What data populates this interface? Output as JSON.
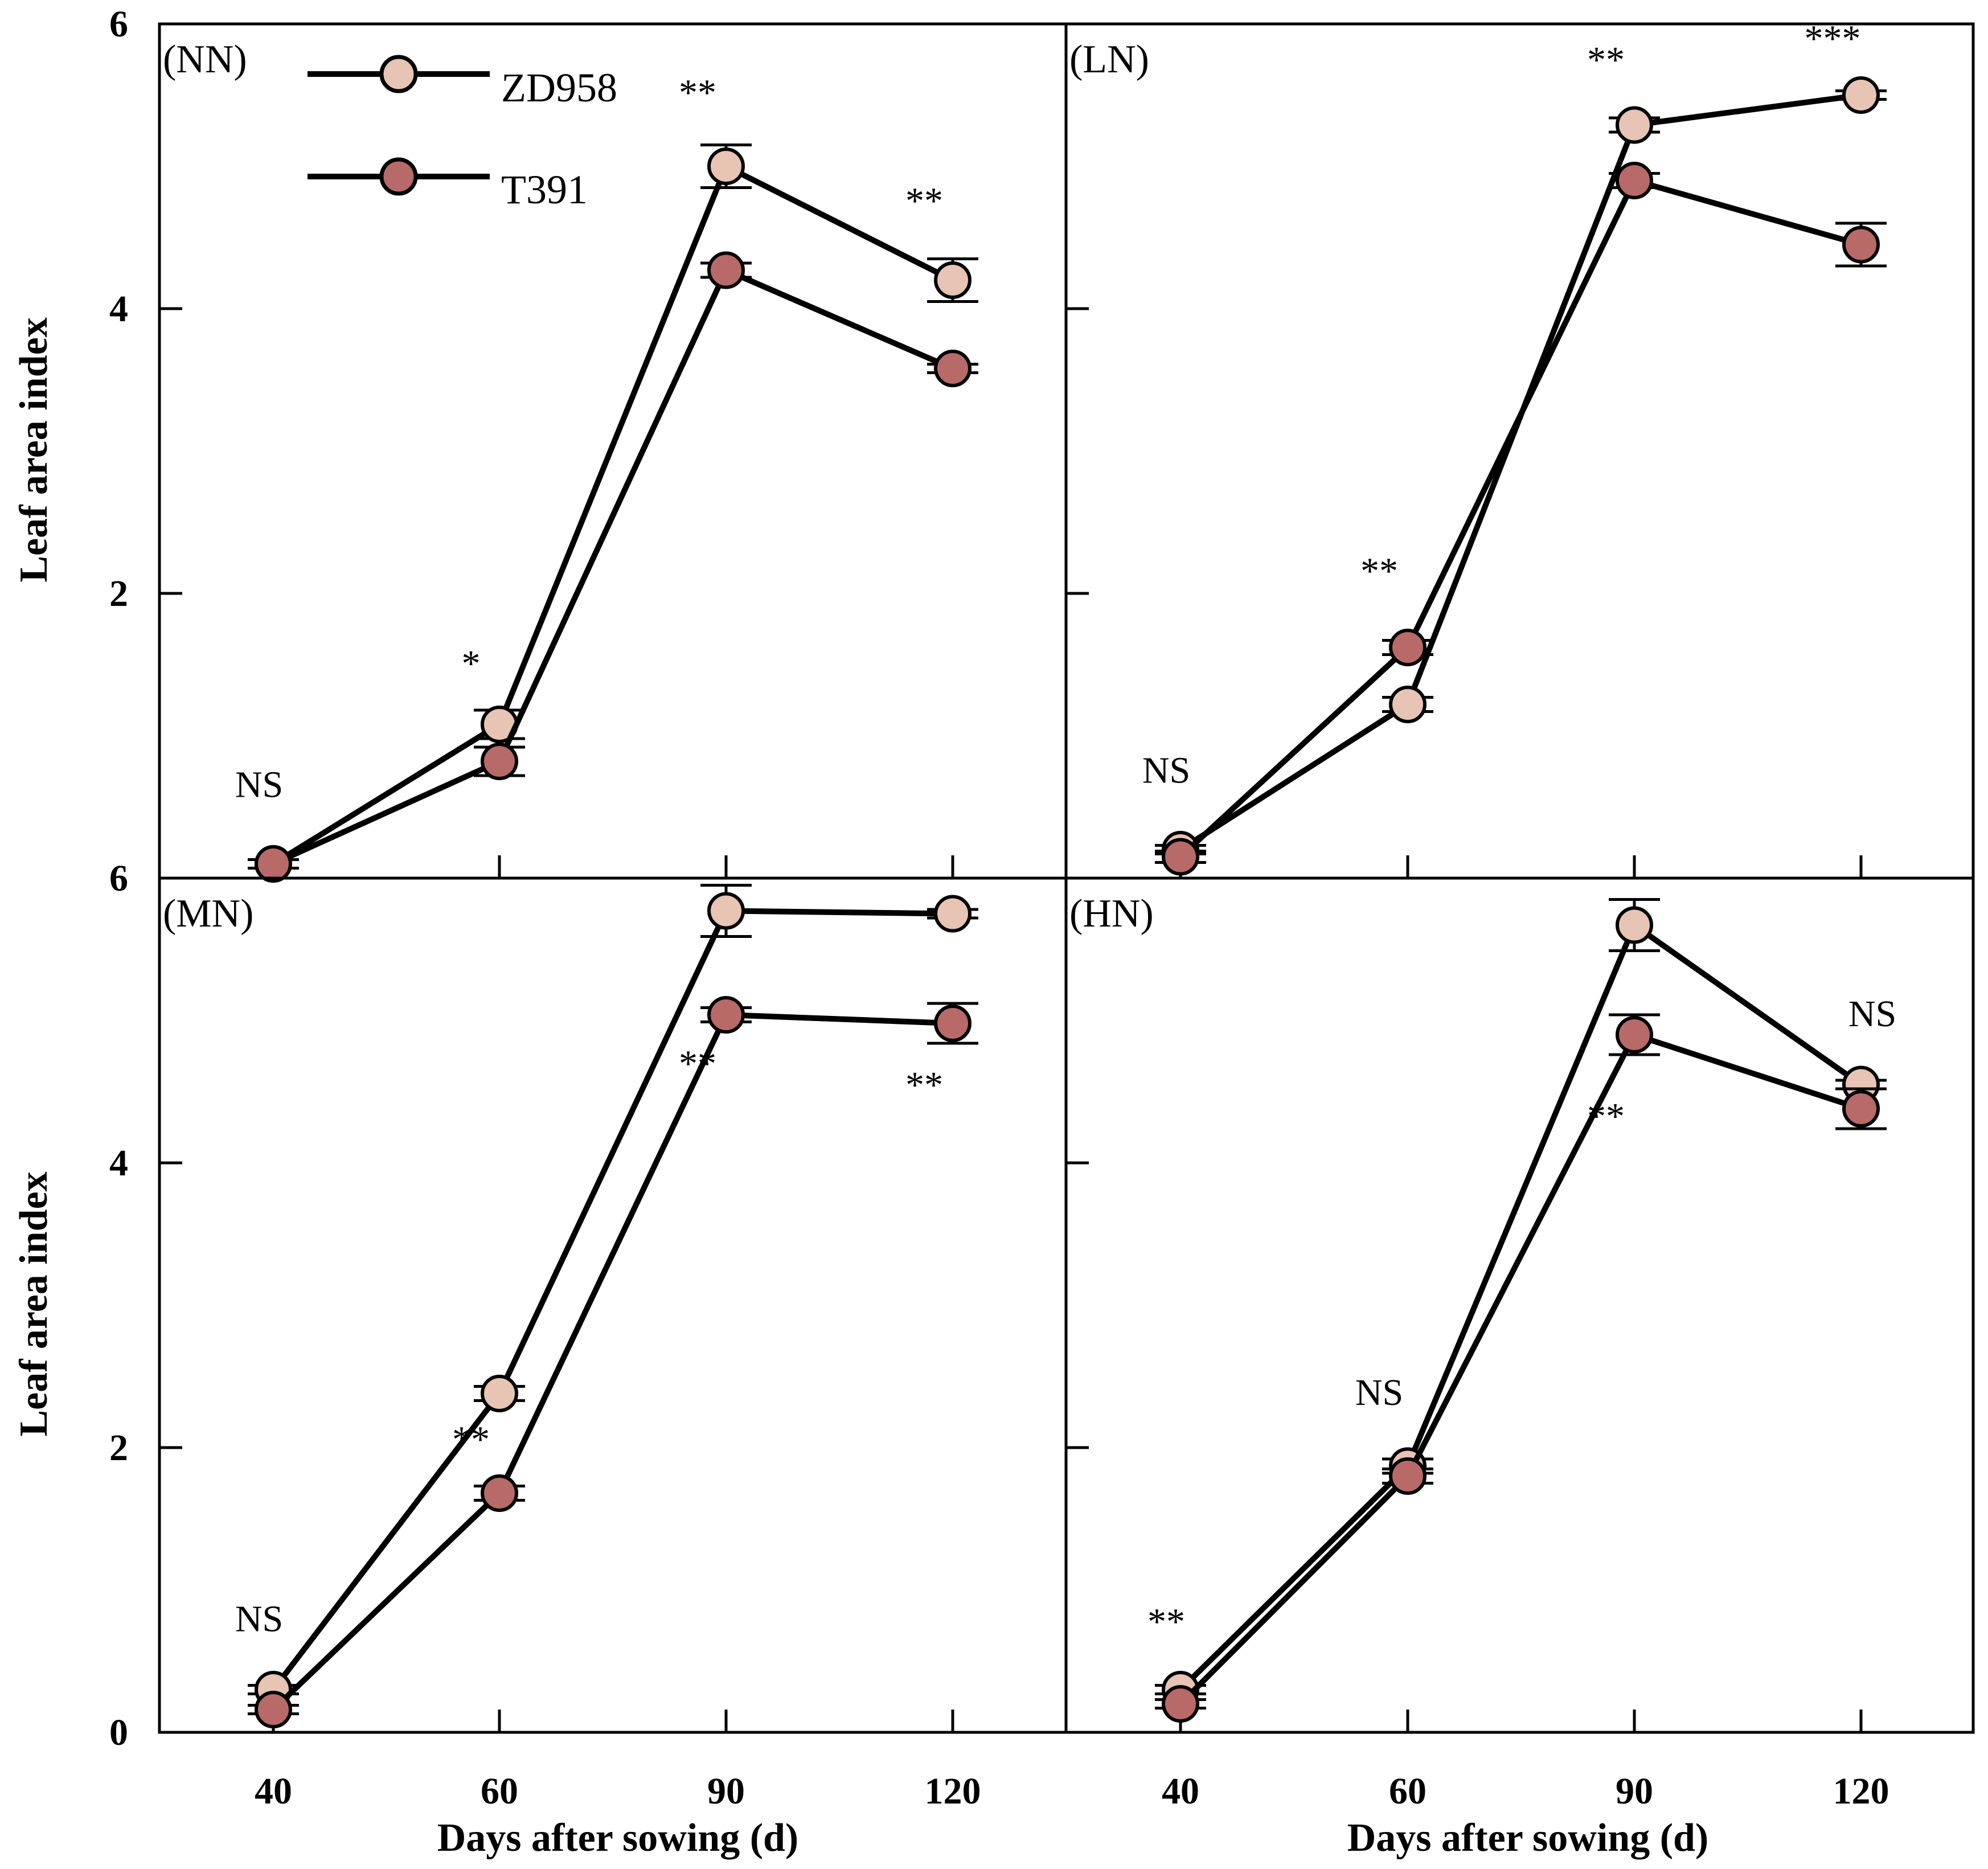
{
  "chart_data": {
    "type": "line",
    "layout": "2x2 panels",
    "xlabel": "Days after sowing (d)",
    "ylabel": "Leaf area index",
    "x": [
      40,
      60,
      90,
      120
    ],
    "x_tick_labels": [
      "40",
      "60",
      "90",
      "120"
    ],
    "ylim": [
      0,
      6
    ],
    "y_ticks": [
      0,
      2,
      4,
      6
    ],
    "y_tick_labels": [
      "0",
      "2",
      "4",
      "6"
    ],
    "legend": {
      "position": "top-left (NN panel)",
      "entries": [
        {
          "name": "ZD958",
          "color": "#E8C4B4"
        },
        {
          "name": "T391",
          "color": "#B86A68"
        }
      ]
    },
    "panels": [
      {
        "label": "(NN)",
        "series": [
          {
            "name": "ZD958",
            "values": [
              0.1,
              1.08,
              5.0,
              4.2
            ],
            "errors": [
              0.03,
              0.1,
              0.15,
              0.15
            ]
          },
          {
            "name": "T391",
            "values": [
              0.1,
              0.82,
              4.27,
              3.58
            ],
            "errors": [
              0.03,
              0.1,
              0.05,
              0.03
            ]
          }
        ],
        "annotations": [
          "NS",
          "*",
          "**",
          "**"
        ]
      },
      {
        "label": "(LN)",
        "series": [
          {
            "name": "ZD958",
            "values": [
              0.2,
              1.22,
              5.29,
              5.5
            ],
            "errors": [
              0.03,
              0.05,
              0.05,
              0.03
            ]
          },
          {
            "name": "T391",
            "values": [
              0.15,
              1.62,
              4.9,
              4.45
            ],
            "errors": [
              0.04,
              0.05,
              0.05,
              0.15
            ]
          }
        ],
        "annotations": [
          "NS",
          "**",
          "**",
          "***"
        ]
      },
      {
        "label": "(MN)",
        "series": [
          {
            "name": "ZD958",
            "values": [
              0.3,
              2.38,
              5.77,
              5.75
            ],
            "errors": [
              0.03,
              0.05,
              0.18,
              0.03
            ]
          },
          {
            "name": "T391",
            "values": [
              0.16,
              1.68,
              5.04,
              4.98
            ],
            "errors": [
              0.03,
              0.05,
              0.05,
              0.14
            ]
          }
        ],
        "annotations": [
          "NS",
          "**",
          "**",
          "**"
        ]
      },
      {
        "label": "(HN)",
        "series": [
          {
            "name": "ZD958",
            "values": [
              0.3,
              1.87,
              5.67,
              4.55
            ],
            "errors": [
              0.03,
              0.05,
              0.18,
              0.03
            ]
          },
          {
            "name": "T391",
            "values": [
              0.2,
              1.8,
              4.9,
              4.38
            ],
            "errors": [
              0.03,
              0.05,
              0.14,
              0.14
            ]
          }
        ],
        "annotations": [
          "**",
          "NS",
          "**",
          "NS"
        ]
      }
    ]
  }
}
